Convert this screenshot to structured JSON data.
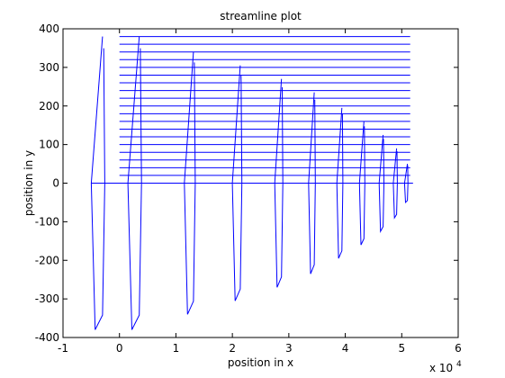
{
  "chart_data": {
    "type": "line",
    "title": "streamline plot",
    "xlabel": "position in x",
    "ylabel": "position in y",
    "x_exponent_label": "x 10",
    "x_exponent_power": "4",
    "xlim": [
      -10000,
      60000
    ],
    "ylim": [
      -400,
      400
    ],
    "xticks": [
      -10000,
      0,
      10000,
      20000,
      30000,
      40000,
      50000,
      60000
    ],
    "xtick_labels": [
      "-1",
      "0",
      "1",
      "2",
      "3",
      "4",
      "5",
      "6"
    ],
    "yticks": [
      -400,
      -300,
      -200,
      -100,
      0,
      100,
      200,
      300,
      400
    ],
    "ytick_labels": [
      "-400",
      "-300",
      "-200",
      "-100",
      "0",
      "100",
      "200",
      "300",
      "400"
    ],
    "grid": false,
    "line_color": "#0000ff",
    "streamline_y_values": [
      20,
      40,
      60,
      80,
      100,
      120,
      140,
      160,
      180,
      200,
      220,
      240,
      260,
      280,
      300,
      320,
      340,
      360,
      380
    ],
    "streamline_x_range": [
      0,
      51500
    ],
    "axis_line": {
      "x": [
        -5000,
        52000
      ],
      "y": 0
    },
    "waves": [
      {
        "x_center": -5000,
        "half_width": 2000,
        "amplitude": 380
      },
      {
        "x_center": 1500,
        "half_width": 2000,
        "amplitude": 380
      },
      {
        "x_center": 11500,
        "half_width": 1600,
        "amplitude": 340
      },
      {
        "x_center": 20000,
        "half_width": 1400,
        "amplitude": 305
      },
      {
        "x_center": 27500,
        "half_width": 1200,
        "amplitude": 270
      },
      {
        "x_center": 33500,
        "half_width": 1000,
        "amplitude": 235
      },
      {
        "x_center": 38500,
        "half_width": 900,
        "amplitude": 195
      },
      {
        "x_center": 42500,
        "half_width": 800,
        "amplitude": 160
      },
      {
        "x_center": 46000,
        "half_width": 700,
        "amplitude": 125
      },
      {
        "x_center": 48500,
        "half_width": 600,
        "amplitude": 90
      },
      {
        "x_center": 50500,
        "half_width": 500,
        "amplitude": 50
      }
    ]
  }
}
